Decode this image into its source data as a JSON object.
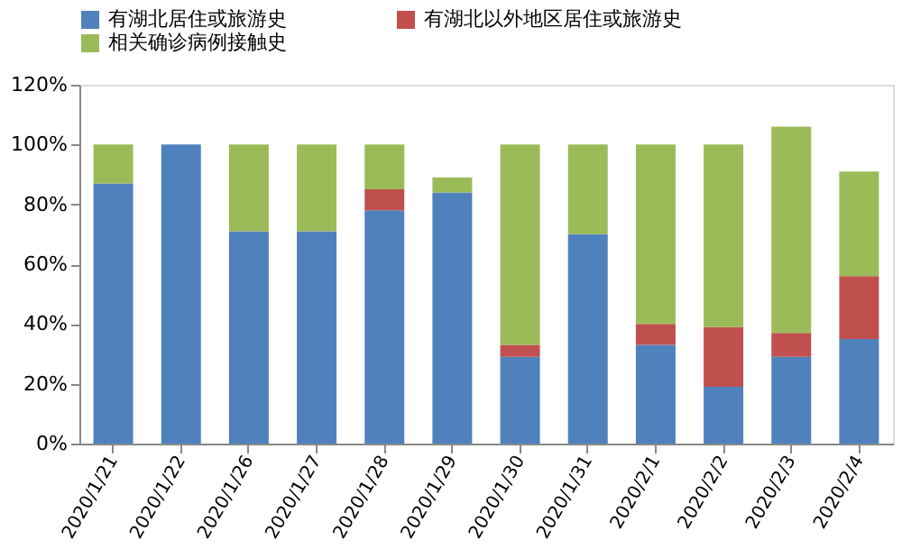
{
  "chart_data": {
    "type": "bar",
    "stacked": true,
    "categories": [
      "2020/1/21",
      "2020/1/22",
      "2020/1/26",
      "2020/1/27",
      "2020/1/28",
      "2020/1/29",
      "2020/1/30",
      "2020/1/31",
      "2020/2/1",
      "2020/2/2",
      "2020/2/3",
      "2020/2/4"
    ],
    "series": [
      {
        "name": "有湖北居住或旅游史",
        "color": "#4f81bd",
        "values": [
          87,
          100,
          71,
          71,
          78,
          84,
          29,
          70,
          33,
          19,
          29,
          35
        ]
      },
      {
        "name": "有湖北以外地区居住或旅游史",
        "color": "#c0504d",
        "values": [
          0,
          0,
          0,
          0,
          7,
          0,
          4,
          0,
          7,
          20,
          8,
          21
        ]
      },
      {
        "name": "相关确诊病例接触史",
        "color": "#9bbb59",
        "values": [
          13,
          0,
          29,
          29,
          15,
          5,
          67,
          30,
          60,
          61,
          69,
          35
        ]
      }
    ],
    "ylim": [
      0,
      120
    ],
    "yticks": [
      {
        "value": 0,
        "label": "0%"
      },
      {
        "value": 20,
        "label": "20%"
      },
      {
        "value": 40,
        "label": "40%"
      },
      {
        "value": 60,
        "label": "60%"
      },
      {
        "value": 80,
        "label": "80%"
      },
      {
        "value": 100,
        "label": "100%"
      },
      {
        "value": 120,
        "label": "120%"
      }
    ],
    "legend": "top"
  }
}
